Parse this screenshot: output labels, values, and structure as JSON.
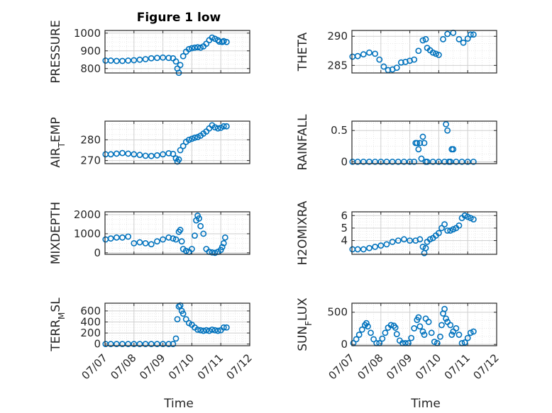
{
  "figure": {
    "title": "Figure 1 low"
  },
  "colors": {
    "marker": "#0072bd",
    "axis": "#262626",
    "grid": "#cfcfcf"
  },
  "chart_data": [
    {
      "type": "scatter",
      "id": "pressure",
      "ylabel_parts": [
        "PRESSURE"
      ],
      "ylim": [
        775,
        1015
      ],
      "yticks": [
        800,
        900,
        1000
      ],
      "yticklabels": [
        "800",
        "900",
        "1000"
      ],
      "xlim": [
        "07/07",
        "07/12"
      ],
      "xticklabels": [
        "07/07",
        "07/08",
        "07/09",
        "07/10",
        "07/11",
        "07/12"
      ],
      "show_xticklabels": false,
      "grid": true,
      "series": [
        {
          "x": [
            0.02,
            0.2,
            0.4,
            0.6,
            0.8,
            1.0,
            1.2,
            1.4,
            1.6,
            1.8,
            2.0,
            2.2,
            2.35,
            2.45,
            2.5,
            2.55,
            2.6,
            2.7,
            2.8,
            2.9,
            3.0,
            3.1,
            3.2,
            3.3,
            3.4,
            3.5,
            3.6,
            3.7,
            3.8,
            3.9,
            3.95,
            4.05,
            4.1,
            4.2
          ],
          "y": [
            845,
            845,
            843,
            843,
            845,
            847,
            850,
            853,
            858,
            860,
            862,
            860,
            858,
            840,
            800,
            776,
            820,
            870,
            895,
            910,
            915,
            918,
            920,
            918,
            925,
            940,
            960,
            975,
            968,
            960,
            952,
            950,
            955,
            950
          ]
        }
      ]
    },
    {
      "type": "scatter",
      "id": "theta",
      "ylabel_parts": [
        "THETA"
      ],
      "ylim": [
        283.7,
        291
      ],
      "yticks": [
        285,
        290
      ],
      "yticklabels": [
        "285",
        "290"
      ],
      "xlim": [
        "07/07",
        "07/12"
      ],
      "xticklabels": [
        "07/07",
        "07/08",
        "07/09",
        "07/10",
        "07/11",
        "07/12"
      ],
      "show_xticklabels": false,
      "grid": true,
      "series": [
        {
          "x": [
            0.02,
            0.2,
            0.4,
            0.6,
            0.8,
            0.95,
            1.1,
            1.25,
            1.4,
            1.55,
            1.7,
            1.85,
            2.0,
            2.15,
            2.3,
            2.45,
            2.55,
            2.6,
            2.7,
            2.8,
            2.9,
            3.0,
            3.15,
            3.3,
            3.5,
            3.7,
            3.85,
            4.0,
            4.1,
            4.2
          ],
          "y": [
            286.5,
            286.6,
            286.9,
            287.2,
            287.0,
            286.0,
            284.8,
            284.2,
            284.3,
            284.6,
            285.5,
            285.6,
            285.8,
            286.0,
            287.5,
            289.3,
            289.5,
            288.0,
            287.6,
            287.2,
            287.0,
            286.8,
            289.5,
            290.4,
            290.6,
            289.5,
            288.9,
            289.6,
            290.3,
            290.3
          ]
        }
      ]
    },
    {
      "type": "scatter",
      "id": "air-temp",
      "ylabel_parts": [
        "AIR",
        "T",
        "EMP"
      ],
      "ylim": [
        268.5,
        289
      ],
      "yticks": [
        270,
        280
      ],
      "yticklabels": [
        "270",
        "280"
      ],
      "xlim": [
        "07/07",
        "07/12"
      ],
      "xticklabels": [
        "07/07",
        "07/08",
        "07/09",
        "07/10",
        "07/11",
        "07/12"
      ],
      "show_xticklabels": false,
      "grid": true,
      "series": [
        {
          "x": [
            0.02,
            0.2,
            0.4,
            0.6,
            0.8,
            1.0,
            1.2,
            1.4,
            1.6,
            1.8,
            2.0,
            2.2,
            2.35,
            2.45,
            2.5,
            2.55,
            2.6,
            2.7,
            2.8,
            2.9,
            3.0,
            3.1,
            3.2,
            3.3,
            3.4,
            3.5,
            3.6,
            3.7,
            3.8,
            3.9,
            4.0,
            4.1,
            4.2
          ],
          "y": [
            273,
            273,
            273.3,
            273.6,
            273.3,
            273,
            272.7,
            272.3,
            272.2,
            272.5,
            273,
            273.5,
            273.2,
            271,
            269.5,
            270.5,
            275,
            277,
            279,
            280,
            280.5,
            281,
            281.3,
            282,
            283,
            284,
            285.5,
            287,
            286,
            285.5,
            285.8,
            286.5,
            286.5
          ]
        }
      ]
    },
    {
      "type": "scatter",
      "id": "rainfall",
      "ylabel_parts": [
        "RAINFALL"
      ],
      "ylim": [
        -0.03,
        0.65
      ],
      "yticks": [
        0,
        0.5
      ],
      "yticklabels": [
        "0",
        "0.5"
      ],
      "xlim": [
        "07/07",
        "07/12"
      ],
      "xticklabels": [
        "07/07",
        "07/08",
        "07/09",
        "07/10",
        "07/11",
        "07/12"
      ],
      "show_xticklabels": false,
      "grid": true,
      "series": [
        {
          "x": [
            0.02,
            0.2,
            0.4,
            0.6,
            0.8,
            1.0,
            1.2,
            1.4,
            1.6,
            1.8,
            2.0,
            2.15,
            2.2,
            2.25,
            2.3,
            2.35,
            2.4,
            2.45,
            2.5,
            2.55,
            2.6,
            2.8,
            3.0,
            3.2,
            3.25,
            3.3,
            3.35,
            3.4,
            3.45,
            3.5,
            3.6,
            3.8,
            4.0,
            4.2
          ],
          "y": [
            0,
            0,
            0,
            0,
            0,
            0,
            0,
            0,
            0,
            0,
            0,
            0,
            0.3,
            0.3,
            0.2,
            0.3,
            0.05,
            0.4,
            0.3,
            0,
            0,
            0,
            0,
            0,
            0.6,
            0.5,
            0,
            0,
            0.2,
            0.2,
            0,
            0,
            0,
            0
          ]
        }
      ]
    },
    {
      "type": "scatter",
      "id": "mixdepth",
      "ylabel_parts": [
        "MIXDEPTH"
      ],
      "ylim": [
        -80,
        2150
      ],
      "yticks": [
        0,
        1000,
        2000
      ],
      "yticklabels": [
        "0",
        "1000",
        "2000"
      ],
      "xlim": [
        "07/07",
        "07/12"
      ],
      "xticklabels": [
        "07/07",
        "07/08",
        "07/09",
        "07/10",
        "07/11",
        "07/12"
      ],
      "show_xticklabels": false,
      "grid": true,
      "series": [
        {
          "x": [
            0.02,
            0.2,
            0.4,
            0.6,
            0.8,
            1.0,
            1.2,
            1.4,
            1.6,
            1.8,
            2.0,
            2.2,
            2.35,
            2.45,
            2.55,
            2.6,
            2.65,
            2.7,
            2.8,
            2.9,
            3.0,
            3.1,
            3.15,
            3.2,
            3.25,
            3.3,
            3.4,
            3.5,
            3.6,
            3.7,
            3.8,
            3.9,
            4.0,
            4.05,
            4.1,
            4.15
          ],
          "y": [
            700,
            750,
            800,
            800,
            850,
            500,
            550,
            500,
            450,
            600,
            700,
            800,
            750,
            700,
            1100,
            1200,
            600,
            200,
            100,
            50,
            200,
            900,
            1700,
            1950,
            1800,
            1400,
            1000,
            200,
            50,
            20,
            0,
            50,
            150,
            300,
            500,
            800
          ]
        }
      ]
    },
    {
      "type": "scatter",
      "id": "h2omixra",
      "ylabel_parts": [
        "H2OMIXRA"
      ],
      "ylim": [
        2.9,
        6.3
      ],
      "yticks": [
        4,
        5,
        6
      ],
      "yticklabels": [
        "4",
        "5",
        "6"
      ],
      "xlim": [
        "07/07",
        "07/12"
      ],
      "xticklabels": [
        "07/07",
        "07/08",
        "07/09",
        "07/10",
        "07/11",
        "07/12"
      ],
      "show_xticklabels": false,
      "grid": true,
      "series": [
        {
          "x": [
            0.02,
            0.2,
            0.4,
            0.6,
            0.8,
            1.0,
            1.2,
            1.4,
            1.6,
            1.8,
            2.0,
            2.2,
            2.35,
            2.45,
            2.5,
            2.55,
            2.6,
            2.7,
            2.8,
            2.9,
            3.0,
            3.1,
            3.2,
            3.3,
            3.4,
            3.5,
            3.6,
            3.7,
            3.8,
            3.9,
            4.0,
            4.1,
            4.2
          ],
          "y": [
            3.3,
            3.3,
            3.3,
            3.4,
            3.5,
            3.6,
            3.7,
            3.9,
            4.0,
            4.1,
            4.0,
            4.0,
            4.1,
            3.5,
            3.0,
            3.4,
            3.9,
            4.1,
            4.2,
            4.4,
            4.6,
            5.0,
            5.3,
            4.8,
            4.8,
            4.9,
            5.0,
            5.2,
            5.8,
            6.0,
            5.9,
            5.8,
            5.7
          ]
        }
      ]
    },
    {
      "type": "scatter",
      "id": "terr-msl",
      "ylabel_parts": [
        "TERR",
        "M",
        "SL"
      ],
      "ylim": [
        -30,
        740
      ],
      "yticks": [
        0,
        200,
        400,
        600
      ],
      "yticklabels": [
        "0",
        "200",
        "400",
        "600"
      ],
      "xlim": [
        "07/07",
        "07/12"
      ],
      "xticklabels": [
        "07/07",
        "07/08",
        "07/09",
        "07/10",
        "07/11",
        "07/12"
      ],
      "show_xticklabels": true,
      "xlabel": "Time",
      "grid": true,
      "series": [
        {
          "x": [
            0.02,
            0.2,
            0.4,
            0.6,
            0.8,
            1.0,
            1.2,
            1.4,
            1.6,
            1.8,
            2.0,
            2.2,
            2.35,
            2.45,
            2.5,
            2.55,
            2.6,
            2.65,
            2.7,
            2.8,
            2.9,
            3.0,
            3.1,
            3.2,
            3.3,
            3.4,
            3.5,
            3.6,
            3.7,
            3.8,
            3.9,
            4.0,
            4.1,
            4.2
          ],
          "y": [
            0,
            0,
            0,
            0,
            0,
            0,
            0,
            0,
            0,
            0,
            0,
            0,
            0,
            100,
            450,
            680,
            700,
            600,
            550,
            450,
            380,
            350,
            300,
            260,
            250,
            240,
            250,
            240,
            260,
            250,
            240,
            250,
            300,
            300
          ]
        }
      ]
    },
    {
      "type": "scatter",
      "id": "sun-flux",
      "ylabel_parts": [
        "SUN",
        "F",
        "LUX"
      ],
      "ylim": [
        -20,
        640
      ],
      "yticks": [
        0,
        500
      ],
      "yticklabels": [
        "0",
        "500"
      ],
      "xlim": [
        "07/07",
        "07/12"
      ],
      "xticklabels": [
        "07/07",
        "07/08",
        "07/09",
        "07/10",
        "07/11",
        "07/12"
      ],
      "show_xticklabels": true,
      "xlabel": "Time",
      "grid": true,
      "series": [
        {
          "x": [
            0.05,
            0.15,
            0.25,
            0.35,
            0.45,
            0.5,
            0.55,
            0.65,
            0.75,
            0.85,
            0.95,
            1.05,
            1.15,
            1.25,
            1.35,
            1.45,
            1.5,
            1.55,
            1.65,
            1.75,
            1.85,
            1.95,
            2.05,
            2.15,
            2.25,
            2.3,
            2.35,
            2.45,
            2.5,
            2.55,
            2.65,
            2.75,
            2.85,
            2.95,
            3.05,
            3.1,
            3.15,
            3.2,
            3.25,
            3.3,
            3.4,
            3.45,
            3.5,
            3.6,
            3.7,
            3.8,
            3.9,
            4.0,
            4.1,
            4.2
          ],
          "y": [
            20,
            80,
            150,
            230,
            300,
            330,
            280,
            180,
            80,
            20,
            20,
            90,
            180,
            260,
            300,
            290,
            260,
            160,
            60,
            20,
            20,
            20,
            100,
            250,
            380,
            420,
            280,
            200,
            150,
            400,
            350,
            180,
            40,
            20,
            120,
            300,
            480,
            550,
            400,
            350,
            300,
            150,
            200,
            250,
            150,
            20,
            30,
            100,
            180,
            200
          ]
        }
      ]
    }
  ]
}
